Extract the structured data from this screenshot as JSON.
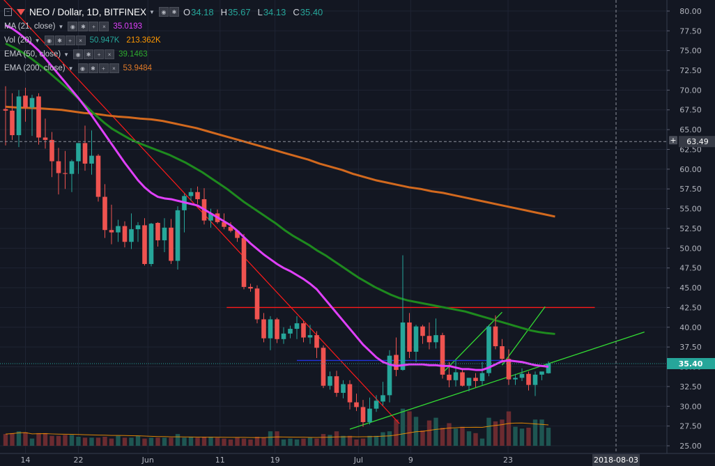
{
  "header": {
    "symbol": "NEO / Dollar, 1D, BITFINEX",
    "ohlc": [
      {
        "key": "O",
        "value": "34.18"
      },
      {
        "key": "H",
        "value": "35.67"
      },
      {
        "key": "L",
        "value": "34.13"
      },
      {
        "key": "C",
        "value": "35.40"
      }
    ]
  },
  "indicators": [
    {
      "label": "MA (21, close)",
      "values": [
        "35.0193"
      ],
      "colors": [
        "#e040fb"
      ]
    },
    {
      "label": "Vol (20)",
      "values": [
        "50.947K",
        "213.362K"
      ],
      "colors": [
        "#26a69a",
        "#ff9800"
      ]
    },
    {
      "label": "EMA (50, close)",
      "values": [
        "39.1463"
      ],
      "colors": [
        "#1e8a1e"
      ]
    },
    {
      "label": "EMA (200, close)",
      "values": [
        "53.9484"
      ],
      "colors": [
        "#d2691e"
      ]
    }
  ],
  "y_axis": {
    "ticks": [
      "80.00",
      "77.50",
      "75.00",
      "72.50",
      "70.00",
      "67.50",
      "65.00",
      "62.50",
      "60.00",
      "57.50",
      "55.00",
      "52.50",
      "50.00",
      "47.50",
      "45.00",
      "42.50",
      "40.00",
      "37.50",
      "35.00",
      "32.50",
      "30.00",
      "27.50",
      "25.00"
    ],
    "crosshair_label": "63.49",
    "last_price_label": "35.40",
    "plus_icon": "plus-icon"
  },
  "x_axis": {
    "ticks": [
      "14",
      "22",
      "Jun",
      "11",
      "19",
      "Jul",
      "9",
      "23"
    ],
    "crosshair_label": "2018-08-03"
  },
  "colors": {
    "background": "#131722",
    "up": "#26a69a",
    "down": "#ef5350",
    "ma21": "#e040fb",
    "ema50": "#1e8a1e",
    "ema200": "#d2691e",
    "trend_red": "#ff1a1a",
    "trend_green": "#33dd33",
    "blue_line": "#2233dd"
  },
  "chart_data": {
    "type": "candlestick",
    "y_range": [
      24,
      81
    ],
    "candles": [
      [
        67.6,
        70.5,
        63.0,
        67.4
      ],
      [
        67.4,
        69.6,
        63.7,
        64.3
      ],
      [
        64.3,
        70.0,
        62.8,
        69.2
      ],
      [
        69.3,
        70.3,
        66.0,
        67.8
      ],
      [
        67.8,
        69.4,
        64.2,
        69.0
      ],
      [
        69.2,
        69.6,
        63.1,
        64.0
      ],
      [
        64.0,
        66.4,
        62.6,
        63.7
      ],
      [
        63.7,
        64.7,
        59.0,
        61.0
      ],
      [
        61.0,
        62.7,
        56.8,
        59.5
      ],
      [
        59.5,
        62.3,
        57.5,
        59.4
      ],
      [
        59.4,
        61.2,
        57.1,
        61.0
      ],
      [
        61.0,
        63.1,
        59.4,
        63.3
      ],
      [
        63.3,
        65.5,
        59.8,
        60.7
      ],
      [
        60.7,
        64.9,
        59.3,
        61.7
      ],
      [
        61.7,
        61.9,
        55.9,
        56.5
      ],
      [
        56.5,
        58.1,
        51.3,
        52.3
      ],
      [
        52.3,
        55.5,
        50.5,
        52.0
      ],
      [
        52.0,
        53.6,
        50.8,
        52.8
      ],
      [
        52.8,
        53.4,
        50.1,
        50.8
      ],
      [
        50.8,
        54.4,
        49.9,
        52.4
      ],
      [
        52.4,
        53.3,
        50.8,
        52.9
      ],
      [
        52.9,
        53.8,
        47.8,
        48.0
      ],
      [
        48.0,
        53.2,
        47.7,
        53.1
      ],
      [
        53.2,
        53.3,
        50.2,
        51.0
      ],
      [
        51.0,
        53.8,
        49.5,
        52.6
      ],
      [
        52.6,
        53.7,
        48.0,
        48.4
      ],
      [
        48.4,
        55.3,
        47.3,
        54.8
      ],
      [
        54.8,
        56.9,
        52.0,
        56.6
      ],
      [
        56.6,
        57.6,
        56.0,
        57.1
      ],
      [
        57.1,
        57.8,
        55.6,
        56.2
      ],
      [
        56.2,
        57.6,
        53.0,
        53.5
      ],
      [
        53.5,
        55.0,
        52.6,
        54.4
      ],
      [
        54.4,
        54.9,
        53.1,
        53.3
      ],
      [
        53.3,
        54.4,
        52.4,
        52.7
      ],
      [
        52.7,
        53.3,
        52.0,
        52.2
      ],
      [
        52.2,
        52.3,
        50.8,
        51.3
      ],
      [
        51.3,
        51.8,
        44.8,
        45.1
      ],
      [
        45.1,
        45.5,
        44.5,
        44.9
      ],
      [
        44.9,
        45.3,
        40.5,
        41.0
      ],
      [
        41.0,
        41.8,
        38.1,
        38.6
      ],
      [
        38.6,
        41.4,
        37.1,
        41.0
      ],
      [
        41.0,
        41.2,
        38.0,
        38.5
      ],
      [
        38.5,
        40.0,
        37.9,
        39.2
      ],
      [
        39.2,
        40.2,
        38.6,
        39.8
      ],
      [
        39.8,
        41.4,
        38.5,
        40.5
      ],
      [
        40.5,
        40.8,
        38.1,
        38.7
      ],
      [
        38.7,
        40.3,
        37.9,
        39.0
      ],
      [
        39.0,
        39.5,
        36.1,
        37.4
      ],
      [
        37.4,
        37.7,
        32.3,
        32.6
      ],
      [
        32.6,
        34.4,
        32.1,
        33.8
      ],
      [
        33.8,
        34.5,
        31.2,
        31.7
      ],
      [
        31.7,
        33.3,
        31.0,
        32.8
      ],
      [
        32.8,
        33.3,
        29.6,
        30.5
      ],
      [
        30.5,
        31.6,
        29.4,
        29.9
      ],
      [
        29.9,
        30.8,
        27.4,
        28.0
      ],
      [
        28.0,
        31.1,
        27.7,
        29.7
      ],
      [
        29.7,
        31.4,
        29.3,
        30.7
      ],
      [
        30.6,
        33.1,
        30.1,
        31.4
      ],
      [
        31.4,
        37.1,
        30.5,
        36.4
      ],
      [
        36.5,
        38.7,
        33.8,
        34.6
      ],
      [
        34.6,
        49.1,
        34.5,
        40.6
      ],
      [
        40.6,
        41.8,
        36.1,
        36.9
      ],
      [
        36.9,
        40.3,
        35.6,
        40.1
      ],
      [
        40.1,
        40.3,
        37.9,
        38.9
      ],
      [
        38.9,
        40.6,
        37.2,
        38.1
      ],
      [
        38.1,
        41.1,
        37.3,
        39.0
      ],
      [
        39.0,
        39.3,
        33.5,
        34.0
      ],
      [
        34.0,
        35.6,
        32.4,
        33.3
      ],
      [
        33.3,
        35.8,
        32.5,
        34.3
      ],
      [
        34.3,
        34.7,
        32.5,
        32.6
      ],
      [
        32.6,
        33.6,
        31.9,
        33.6
      ],
      [
        33.6,
        34.2,
        32.4,
        33.2
      ],
      [
        33.2,
        35.6,
        32.7,
        34.2
      ],
      [
        34.2,
        40.3,
        33.8,
        40.1
      ],
      [
        40.1,
        41.5,
        37.2,
        37.6
      ],
      [
        37.6,
        38.5,
        35.5,
        36.0
      ],
      [
        36.0,
        37.2,
        32.7,
        33.4
      ],
      [
        33.4,
        34.1,
        32.7,
        33.6
      ],
      [
        33.6,
        34.8,
        33.2,
        34.1
      ],
      [
        34.1,
        34.4,
        32.0,
        32.7
      ],
      [
        32.7,
        34.4,
        31.3,
        34.0
      ],
      [
        34.0,
        34.3,
        33.3,
        34.4
      ],
      [
        34.18,
        35.67,
        34.13,
        35.4
      ]
    ],
    "volume": [
      13,
      14,
      16,
      15,
      8,
      14,
      14,
      11,
      11,
      12,
      12,
      10,
      9,
      9,
      9,
      10,
      8,
      11,
      9,
      9,
      11,
      8,
      9,
      9,
      9,
      9,
      13,
      9,
      10,
      9,
      10,
      10,
      9,
      8,
      7,
      9,
      8,
      7,
      10,
      9,
      16,
      16,
      7,
      8,
      7,
      8,
      9,
      8,
      13,
      12,
      16,
      11,
      11,
      7,
      8,
      11,
      11,
      15,
      16,
      29,
      41,
      38,
      32,
      17,
      28,
      31,
      20,
      25,
      19,
      21,
      16,
      14,
      8,
      31,
      27,
      29,
      38,
      21,
      19,
      20,
      29,
      29,
      20
    ],
    "ma21": [
      78.2,
      77.8,
      77.2,
      76.5,
      75.8,
      75.0,
      74.0,
      73.0,
      72.0,
      71.0,
      70.0,
      69.0,
      67.9,
      66.8,
      65.6,
      64.4,
      63.2,
      62.0,
      60.8,
      59.7,
      58.6,
      57.7,
      57.0,
      56.5,
      56.3,
      56.2,
      56.0,
      55.8,
      55.6,
      55.4,
      54.9,
      54.4,
      53.9,
      53.4,
      52.9,
      52.2,
      51.4,
      50.6,
      49.9,
      49.2,
      48.6,
      48.0,
      47.5,
      47.1,
      46.6,
      46.1,
      45.5,
      44.8,
      43.8,
      42.8,
      41.8,
      40.8,
      39.8,
      38.8,
      37.8,
      37.0,
      36.2,
      35.6,
      35.3,
      35.1,
      35.2,
      35.3,
      35.3,
      35.3,
      35.2,
      35.2,
      35.1,
      35.1,
      34.9,
      34.7,
      34.7,
      34.6,
      34.6,
      34.9,
      35.3,
      35.7,
      35.8,
      35.7,
      35.6,
      35.4,
      35.2,
      35.1,
      35.0
    ],
    "ema50": [
      75.9,
      75.4,
      74.8,
      74.1,
      73.3,
      72.5,
      71.6,
      70.7,
      69.8,
      68.8,
      67.8,
      66.8,
      65.9,
      65.1,
      64.5,
      63.9,
      63.4,
      63.0,
      62.6,
      62.2,
      61.8,
      61.3,
      60.8,
      60.2,
      59.6,
      58.9,
      58.2,
      57.5,
      56.7,
      55.9,
      55.2,
      54.5,
      53.8,
      53.1,
      52.3,
      51.6,
      51.0,
      50.4,
      49.7,
      49.1,
      48.4,
      47.7,
      47.0,
      46.3,
      45.7,
      45.1,
      44.6,
      44.1,
      43.7,
      43.4,
      43.2,
      43.0,
      42.8,
      42.6,
      42.4,
      42.2,
      42.0,
      41.7,
      41.4,
      41.1,
      40.8,
      40.5,
      40.2,
      39.9,
      39.6,
      39.4,
      39.25,
      39.15
    ],
    "ema200": [
      67.9,
      67.8,
      67.75,
      67.7,
      67.6,
      67.5,
      67.3,
      67.1,
      67.0,
      66.8,
      66.65,
      66.55,
      66.4,
      66.3,
      66.1,
      65.8,
      65.5,
      65.2,
      64.8,
      64.4,
      64.0,
      63.6,
      63.2,
      62.8,
      62.4,
      62.0,
      61.6,
      61.2,
      60.7,
      60.3,
      59.9,
      59.4,
      59.0,
      58.6,
      58.3,
      58.0,
      57.7,
      57.5,
      57.2,
      57.0,
      56.7,
      56.4,
      56.1,
      55.8,
      55.5,
      55.2,
      54.9,
      54.6,
      54.3,
      54.0
    ]
  }
}
